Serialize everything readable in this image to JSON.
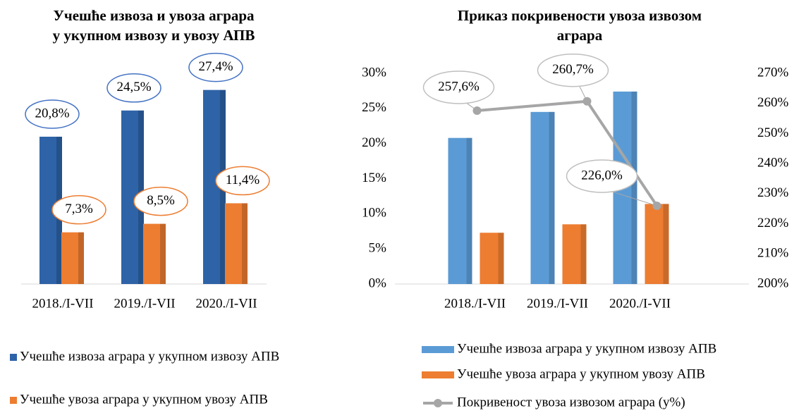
{
  "chart_data": [
    {
      "type": "bar",
      "title": [
        "Учешће извоза и увоза аграра",
        "у укупном извозу и увозу АПВ"
      ],
      "categories": [
        "2018./I-VII",
        "2019./I-VII",
        "2020./I-VII"
      ],
      "series": [
        {
          "name": "Учешће извоза аграра у укупном извозу АПВ",
          "color": "#2e63a8",
          "values": [
            20.8,
            24.5,
            27.4
          ],
          "value_labels": [
            "20,8%",
            "24,5%",
            "27,4%"
          ]
        },
        {
          "name": "Учешће увоза аграра у укупном увозу АПВ",
          "color": "#ed7d31",
          "values": [
            7.3,
            8.5,
            11.4
          ],
          "value_labels": [
            "7,3%",
            "8,5%",
            "11,4%"
          ]
        }
      ]
    },
    {
      "type": "bar",
      "title": [
        "Приказ покривености увоза извозом",
        "аграра"
      ],
      "categories": [
        "2018./I-VII",
        "2019./I-VII",
        "2020./I-VII"
      ],
      "ylim": [
        0,
        30
      ],
      "yticks": [
        {
          "value": 0,
          "label": "0%"
        },
        {
          "value": 5,
          "label": "5%"
        },
        {
          "value": 10,
          "label": "10%"
        },
        {
          "value": 15,
          "label": "15%"
        },
        {
          "value": 20,
          "label": "20%"
        },
        {
          "value": 25,
          "label": "25%"
        },
        {
          "value": 30,
          "label": "30%"
        }
      ],
      "y2lim": [
        200,
        270
      ],
      "y2ticks": [
        {
          "value": 200,
          "label": "200%"
        },
        {
          "value": 210,
          "label": "210%"
        },
        {
          "value": 220,
          "label": "220%"
        },
        {
          "value": 230,
          "label": "230%"
        },
        {
          "value": 240,
          "label": "240%"
        },
        {
          "value": 250,
          "label": "250%"
        },
        {
          "value": 260,
          "label": "260%"
        },
        {
          "value": 270,
          "label": "270%"
        }
      ],
      "series": [
        {
          "name": "Учешће извоза аграра у укупном извозу АПВ",
          "color": "#5b9bd5",
          "values": [
            20.8,
            24.5,
            27.4
          ]
        },
        {
          "name": "Учешће увоза аграра у укупном увозу АПВ",
          "color": "#ed7d31",
          "values": [
            7.3,
            8.5,
            11.4
          ]
        },
        {
          "name": "Покривеност увоза извозом аграра (у%)",
          "color": "#a6a6a6",
          "type": "line",
          "axis": "y2",
          "values": [
            257.6,
            260.7,
            226.0
          ],
          "value_labels": [
            "257,6%",
            "260,7%",
            "226,0%"
          ]
        }
      ]
    }
  ]
}
